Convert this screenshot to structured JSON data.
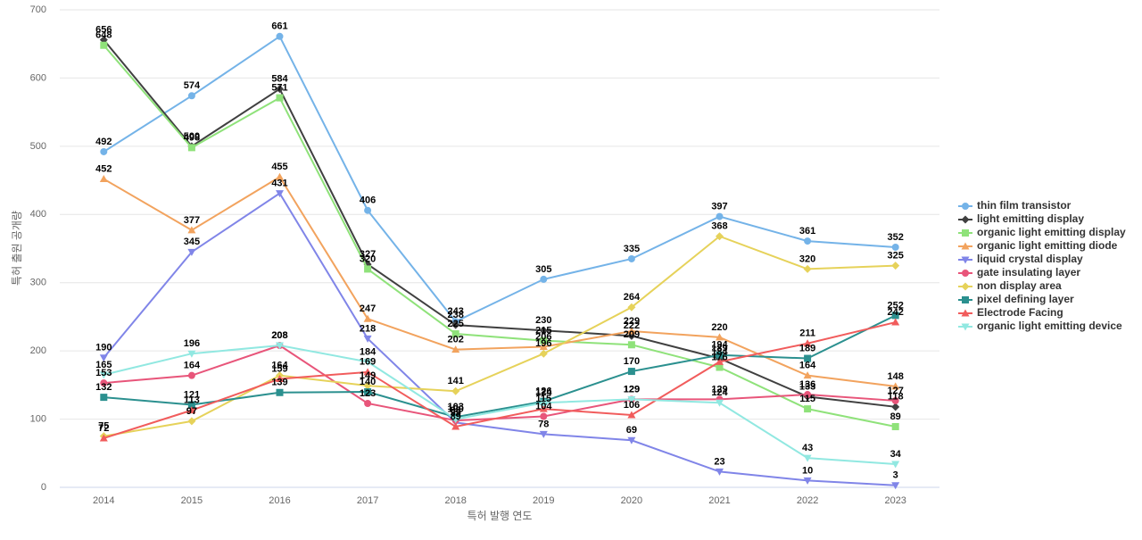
{
  "chart_data": {
    "type": "line",
    "x_label": "특허 발행 연도",
    "y_label": "특허 출원 공개량",
    "categories": [
      "2014",
      "2015",
      "2016",
      "2017",
      "2018",
      "2019",
      "2020",
      "2021",
      "2022",
      "2023"
    ],
    "ylim": [
      0,
      700
    ],
    "yticks": [
      0,
      100,
      200,
      300,
      400,
      500,
      600,
      700
    ],
    "grid": true,
    "legend": "right",
    "series": [
      {
        "name": "thin film transistor",
        "color": "#74b3e8",
        "marker": "circle",
        "values": [
          492,
          574,
          661,
          406,
          243,
          305,
          335,
          397,
          361,
          352
        ]
      },
      {
        "name": "light emitting display",
        "color": "#404040",
        "marker": "diamond",
        "values": [
          656,
          500,
          584,
          327,
          238,
          230,
          222,
          189,
          133,
          118
        ]
      },
      {
        "name": "organic light emitting display",
        "color": "#8fe27a",
        "marker": "square",
        "values": [
          648,
          498,
          571,
          320,
          225,
          215,
          209,
          176,
          115,
          89
        ]
      },
      {
        "name": "organic light emitting diode",
        "color": "#f2a35e",
        "marker": "triangle",
        "values": [
          452,
          377,
          455,
          247,
          202,
          206,
          229,
          220,
          164,
          148
        ]
      },
      {
        "name": "liquid crystal display",
        "color": "#8085e8",
        "marker": "triangle-down",
        "values": [
          190,
          345,
          431,
          218,
          95,
          78,
          69,
          23,
          10,
          3
        ]
      },
      {
        "name": "gate insulating layer",
        "color": "#e8557a",
        "marker": "circle",
        "values": [
          153,
          164,
          208,
          123,
          98,
          104,
          129,
          129,
          136,
          127
        ]
      },
      {
        "name": "non display area",
        "color": "#e6d25a",
        "marker": "diamond",
        "values": [
          75,
          97,
          164,
          149,
          141,
          196,
          264,
          368,
          320,
          325
        ]
      },
      {
        "name": "pixel defining layer",
        "color": "#2b908f",
        "marker": "square",
        "values": [
          132,
          121,
          139,
          140,
          103,
          126,
          170,
          194,
          189,
          252
        ]
      },
      {
        "name": "Electrode Facing",
        "color": "#f15c5c",
        "marker": "triangle",
        "values": [
          72,
          113,
          159,
          169,
          89,
          115,
          106,
          184,
          211,
          242
        ]
      },
      {
        "name": "organic light emitting device",
        "color": "#91e8e1",
        "marker": "triangle-down",
        "values": [
          165,
          196,
          208,
          184,
          100,
          124,
          129,
          124,
          43,
          34
        ]
      }
    ]
  }
}
